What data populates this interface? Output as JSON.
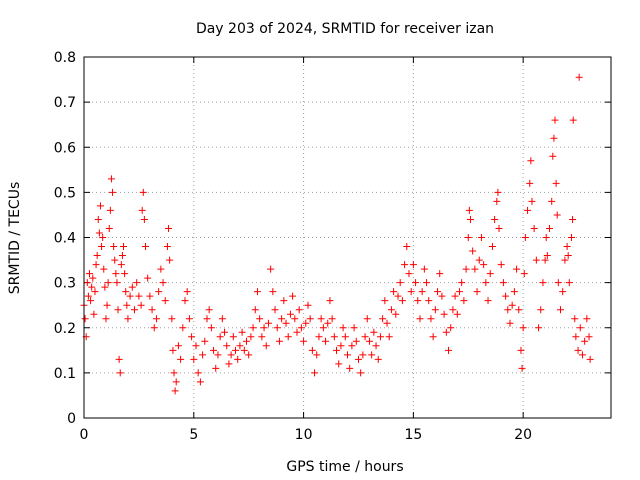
{
  "chart_data": {
    "type": "scatter",
    "title": "Day 203 of 2024, SRMTID for receiver izan",
    "xlabel": "GPS time / hours",
    "ylabel": "SRMTID / TECUs",
    "xlim": [
      0,
      24
    ],
    "ylim": [
      0,
      0.8
    ],
    "xticks": [
      0,
      5,
      10,
      15,
      20
    ],
    "xtick_labels": [
      "0",
      "5",
      "10",
      "15",
      "20"
    ],
    "yticks": [
      0,
      0.1,
      0.2,
      0.3,
      0.4,
      0.5,
      0.6,
      0.7,
      0.8
    ],
    "ytick_labels": [
      "0",
      "0.1",
      "0.2",
      "0.3",
      "0.4",
      "0.5",
      "0.6",
      "0.7",
      "0.8"
    ],
    "grid": true,
    "marker": "+",
    "color": "#ff0000",
    "series": [
      {
        "name": "SRMTID",
        "points": [
          [
            0.0,
            0.25
          ],
          [
            0.05,
            0.22
          ],
          [
            0.1,
            0.18
          ],
          [
            0.15,
            0.3
          ],
          [
            0.2,
            0.27
          ],
          [
            0.25,
            0.32
          ],
          [
            0.3,
            0.26
          ],
          [
            0.35,
            0.29
          ],
          [
            0.4,
            0.31
          ],
          [
            0.45,
            0.23
          ],
          [
            0.5,
            0.28
          ],
          [
            0.55,
            0.34
          ],
          [
            0.6,
            0.36
          ],
          [
            0.65,
            0.44
          ],
          [
            0.7,
            0.41
          ],
          [
            0.75,
            0.47
          ],
          [
            0.8,
            0.38
          ],
          [
            0.85,
            0.4
          ],
          [
            0.9,
            0.33
          ],
          [
            0.95,
            0.29
          ],
          [
            1.0,
            0.22
          ],
          [
            1.05,
            0.25
          ],
          [
            1.1,
            0.3
          ],
          [
            1.15,
            0.42
          ],
          [
            1.2,
            0.46
          ],
          [
            1.25,
            0.53
          ],
          [
            1.3,
            0.5
          ],
          [
            1.35,
            0.38
          ],
          [
            1.4,
            0.35
          ],
          [
            1.45,
            0.32
          ],
          [
            1.5,
            0.3
          ],
          [
            1.55,
            0.24
          ],
          [
            1.6,
            0.13
          ],
          [
            1.65,
            0.1
          ],
          [
            1.7,
            0.34
          ],
          [
            1.75,
            0.36
          ],
          [
            1.8,
            0.38
          ],
          [
            1.85,
            0.32
          ],
          [
            1.9,
            0.28
          ],
          [
            1.95,
            0.25
          ],
          [
            2.0,
            0.22
          ],
          [
            2.1,
            0.27
          ],
          [
            2.2,
            0.29
          ],
          [
            2.3,
            0.24
          ],
          [
            2.4,
            0.3
          ],
          [
            2.5,
            0.27
          ],
          [
            2.6,
            0.25
          ],
          [
            2.65,
            0.46
          ],
          [
            2.7,
            0.5
          ],
          [
            2.75,
            0.44
          ],
          [
            2.8,
            0.38
          ],
          [
            2.9,
            0.31
          ],
          [
            3.0,
            0.27
          ],
          [
            3.1,
            0.24
          ],
          [
            3.2,
            0.2
          ],
          [
            3.3,
            0.22
          ],
          [
            3.4,
            0.28
          ],
          [
            3.5,
            0.33
          ],
          [
            3.6,
            0.3
          ],
          [
            3.7,
            0.26
          ],
          [
            3.8,
            0.38
          ],
          [
            3.85,
            0.42
          ],
          [
            3.9,
            0.35
          ],
          [
            4.0,
            0.22
          ],
          [
            4.05,
            0.15
          ],
          [
            4.1,
            0.1
          ],
          [
            4.15,
            0.06
          ],
          [
            4.2,
            0.08
          ],
          [
            4.3,
            0.16
          ],
          [
            4.4,
            0.13
          ],
          [
            4.5,
            0.2
          ],
          [
            4.6,
            0.26
          ],
          [
            4.7,
            0.28
          ],
          [
            4.8,
            0.22
          ],
          [
            4.9,
            0.18
          ],
          [
            5.0,
            0.13
          ],
          [
            5.1,
            0.16
          ],
          [
            5.2,
            0.1
          ],
          [
            5.3,
            0.08
          ],
          [
            5.4,
            0.14
          ],
          [
            5.5,
            0.17
          ],
          [
            5.6,
            0.22
          ],
          [
            5.7,
            0.24
          ],
          [
            5.8,
            0.2
          ],
          [
            5.9,
            0.15
          ],
          [
            6.0,
            0.11
          ],
          [
            6.1,
            0.14
          ],
          [
            6.2,
            0.18
          ],
          [
            6.3,
            0.22
          ],
          [
            6.4,
            0.19
          ],
          [
            6.5,
            0.16
          ],
          [
            6.6,
            0.12
          ],
          [
            6.7,
            0.14
          ],
          [
            6.8,
            0.18
          ],
          [
            6.9,
            0.15
          ],
          [
            7.0,
            0.13
          ],
          [
            7.1,
            0.16
          ],
          [
            7.2,
            0.19
          ],
          [
            7.3,
            0.15
          ],
          [
            7.4,
            0.17
          ],
          [
            7.5,
            0.14
          ],
          [
            7.6,
            0.18
          ],
          [
            7.7,
            0.2
          ],
          [
            7.8,
            0.24
          ],
          [
            7.9,
            0.28
          ],
          [
            8.0,
            0.22
          ],
          [
            8.1,
            0.18
          ],
          [
            8.2,
            0.2
          ],
          [
            8.3,
            0.16
          ],
          [
            8.4,
            0.21
          ],
          [
            8.5,
            0.33
          ],
          [
            8.6,
            0.28
          ],
          [
            8.7,
            0.24
          ],
          [
            8.8,
            0.2
          ],
          [
            8.9,
            0.17
          ],
          [
            9.0,
            0.22
          ],
          [
            9.1,
            0.26
          ],
          [
            9.2,
            0.21
          ],
          [
            9.3,
            0.18
          ],
          [
            9.4,
            0.23
          ],
          [
            9.5,
            0.27
          ],
          [
            9.6,
            0.22
          ],
          [
            9.7,
            0.19
          ],
          [
            9.8,
            0.24
          ],
          [
            9.9,
            0.2
          ],
          [
            10.0,
            0.17
          ],
          [
            10.1,
            0.21
          ],
          [
            10.2,
            0.25
          ],
          [
            10.3,
            0.22
          ],
          [
            10.4,
            0.15
          ],
          [
            10.5,
            0.1
          ],
          [
            10.6,
            0.14
          ],
          [
            10.7,
            0.18
          ],
          [
            10.8,
            0.22
          ],
          [
            10.9,
            0.2
          ],
          [
            11.0,
            0.17
          ],
          [
            11.1,
            0.21
          ],
          [
            11.2,
            0.26
          ],
          [
            11.3,
            0.22
          ],
          [
            11.4,
            0.18
          ],
          [
            11.5,
            0.15
          ],
          [
            11.6,
            0.12
          ],
          [
            11.7,
            0.16
          ],
          [
            11.8,
            0.2
          ],
          [
            11.9,
            0.18
          ],
          [
            12.0,
            0.14
          ],
          [
            12.1,
            0.11
          ],
          [
            12.2,
            0.16
          ],
          [
            12.3,
            0.2
          ],
          [
            12.4,
            0.17
          ],
          [
            12.5,
            0.13
          ],
          [
            12.6,
            0.1
          ],
          [
            12.7,
            0.14
          ],
          [
            12.8,
            0.18
          ],
          [
            12.9,
            0.22
          ],
          [
            13.0,
            0.17
          ],
          [
            13.1,
            0.14
          ],
          [
            13.2,
            0.19
          ],
          [
            13.3,
            0.16
          ],
          [
            13.4,
            0.13
          ],
          [
            13.5,
            0.18
          ],
          [
            13.6,
            0.22
          ],
          [
            13.7,
            0.26
          ],
          [
            13.8,
            0.21
          ],
          [
            13.9,
            0.18
          ],
          [
            14.0,
            0.24
          ],
          [
            14.1,
            0.28
          ],
          [
            14.2,
            0.23
          ],
          [
            14.3,
            0.27
          ],
          [
            14.4,
            0.3
          ],
          [
            14.5,
            0.26
          ],
          [
            14.6,
            0.34
          ],
          [
            14.7,
            0.38
          ],
          [
            14.8,
            0.32
          ],
          [
            14.9,
            0.28
          ],
          [
            15.0,
            0.34
          ],
          [
            15.1,
            0.3
          ],
          [
            15.2,
            0.26
          ],
          [
            15.3,
            0.22
          ],
          [
            15.4,
            0.28
          ],
          [
            15.5,
            0.33
          ],
          [
            15.6,
            0.3
          ],
          [
            15.7,
            0.26
          ],
          [
            15.8,
            0.22
          ],
          [
            15.9,
            0.18
          ],
          [
            16.0,
            0.24
          ],
          [
            16.1,
            0.28
          ],
          [
            16.2,
            0.32
          ],
          [
            16.3,
            0.27
          ],
          [
            16.4,
            0.23
          ],
          [
            16.5,
            0.19
          ],
          [
            16.6,
            0.15
          ],
          [
            16.7,
            0.2
          ],
          [
            16.8,
            0.24
          ],
          [
            16.9,
            0.27
          ],
          [
            17.0,
            0.23
          ],
          [
            17.1,
            0.28
          ],
          [
            17.2,
            0.3
          ],
          [
            17.3,
            0.26
          ],
          [
            17.4,
            0.33
          ],
          [
            17.5,
            0.4
          ],
          [
            17.55,
            0.46
          ],
          [
            17.6,
            0.44
          ],
          [
            17.7,
            0.37
          ],
          [
            17.8,
            0.33
          ],
          [
            17.9,
            0.28
          ],
          [
            18.0,
            0.35
          ],
          [
            18.1,
            0.4
          ],
          [
            18.2,
            0.34
          ],
          [
            18.3,
            0.3
          ],
          [
            18.4,
            0.26
          ],
          [
            18.5,
            0.32
          ],
          [
            18.6,
            0.38
          ],
          [
            18.7,
            0.44
          ],
          [
            18.8,
            0.48
          ],
          [
            18.85,
            0.5
          ],
          [
            18.9,
            0.42
          ],
          [
            19.0,
            0.34
          ],
          [
            19.1,
            0.3
          ],
          [
            19.2,
            0.27
          ],
          [
            19.3,
            0.24
          ],
          [
            19.4,
            0.21
          ],
          [
            19.5,
            0.25
          ],
          [
            19.6,
            0.28
          ],
          [
            19.7,
            0.33
          ],
          [
            19.8,
            0.24
          ],
          [
            19.9,
            0.15
          ],
          [
            19.95,
            0.11
          ],
          [
            20.0,
            0.2
          ],
          [
            20.05,
            0.32
          ],
          [
            20.1,
            0.4
          ],
          [
            20.2,
            0.46
          ],
          [
            20.3,
            0.52
          ],
          [
            20.35,
            0.57
          ],
          [
            20.4,
            0.48
          ],
          [
            20.5,
            0.42
          ],
          [
            20.6,
            0.35
          ],
          [
            20.7,
            0.2
          ],
          [
            20.8,
            0.24
          ],
          [
            20.9,
            0.3
          ],
          [
            21.0,
            0.35
          ],
          [
            21.05,
            0.4
          ],
          [
            21.1,
            0.36
          ],
          [
            21.2,
            0.42
          ],
          [
            21.3,
            0.48
          ],
          [
            21.35,
            0.58
          ],
          [
            21.4,
            0.62
          ],
          [
            21.45,
            0.66
          ],
          [
            21.5,
            0.52
          ],
          [
            21.55,
            0.45
          ],
          [
            21.6,
            0.3
          ],
          [
            21.7,
            0.24
          ],
          [
            21.8,
            0.28
          ],
          [
            21.9,
            0.35
          ],
          [
            22.0,
            0.38
          ],
          [
            22.05,
            0.36
          ],
          [
            22.1,
            0.3
          ],
          [
            22.2,
            0.4
          ],
          [
            22.25,
            0.44
          ],
          [
            22.28,
            0.66
          ],
          [
            22.35,
            0.22
          ],
          [
            22.4,
            0.18
          ],
          [
            22.5,
            0.15
          ],
          [
            22.55,
            0.755
          ],
          [
            22.6,
            0.2
          ],
          [
            22.7,
            0.14
          ],
          [
            22.8,
            0.17
          ],
          [
            22.9,
            0.22
          ],
          [
            23.0,
            0.18
          ],
          [
            23.05,
            0.13
          ]
        ]
      }
    ]
  }
}
